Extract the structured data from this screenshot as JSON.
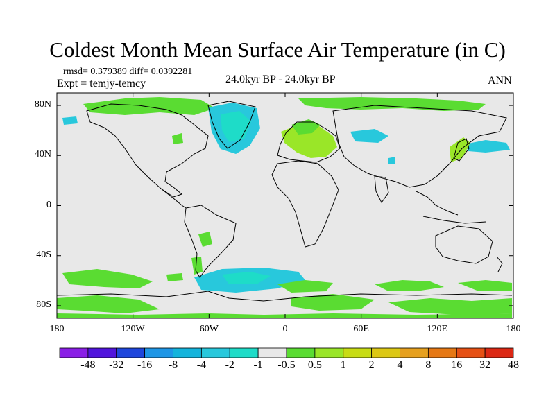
{
  "title": "Coldest Month Mean Surface Air Temperature (in C)",
  "stats": "rmsd= 0.379389  diff= 0.0392281",
  "expt": "Expt = temjy-temcy",
  "period": "24.0kyr BP - 24.0kyr BP",
  "season": "ANN",
  "lat_ticks": [
    {
      "label": "80N",
      "lat": 80
    },
    {
      "label": "40N",
      "lat": 40
    },
    {
      "label": "0",
      "lat": 0
    },
    {
      "label": "40S",
      "lat": -40
    },
    {
      "label": "80S",
      "lat": -80
    }
  ],
  "lon_ticks": [
    {
      "label": "180",
      "lon": -180
    },
    {
      "label": "120W",
      "lon": -120
    },
    {
      "label": "60W",
      "lon": -60
    },
    {
      "label": "0",
      "lon": 0
    },
    {
      "label": "60E",
      "lon": 60
    },
    {
      "label": "120E",
      "lon": 120
    },
    {
      "label": "180",
      "lon": 180
    }
  ],
  "colorbar": {
    "colors": [
      "#8a1ee6",
      "#5014dc",
      "#1e46dc",
      "#1e96e6",
      "#14b4dc",
      "#28c8dc",
      "#1edcc8",
      "#e8e8e8",
      "#5adc32",
      "#9ae628",
      "#c8dc14",
      "#dcc814",
      "#e6a01e",
      "#e67814",
      "#e65014",
      "#dc2814"
    ],
    "labels": [
      "-48",
      "-32",
      "-16",
      "-8",
      "-4",
      "-2",
      "-1",
      "-0.5",
      "0.5",
      "1",
      "2",
      "4",
      "8",
      "16",
      "32",
      "48"
    ]
  },
  "map_colors": {
    "neutral": "#e8e8e8",
    "green_light": "#5adc32",
    "green_yellow": "#9ae628",
    "cyan": "#28c8dc",
    "teal": "#1edcc8"
  }
}
